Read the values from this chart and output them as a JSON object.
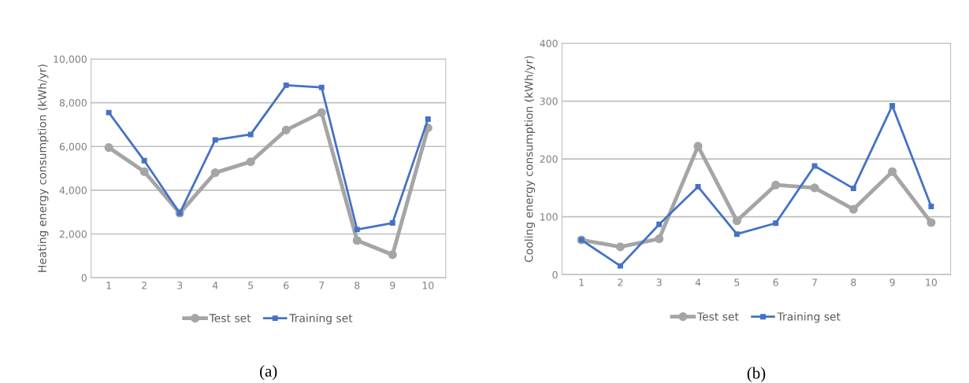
{
  "chart_data": [
    {
      "type": "line",
      "ylabel": "Heating energy consumption (kWh/yr)",
      "categories": [
        "1",
        "2",
        "3",
        "4",
        "5",
        "6",
        "7",
        "8",
        "9",
        "10"
      ],
      "series": [
        {
          "name": "Test set",
          "color": "#a5a5a5",
          "marker": "circle",
          "values": [
            5950,
            4850,
            2950,
            4800,
            5300,
            6750,
            7550,
            1700,
            1050,
            6850
          ]
        },
        {
          "name": "Training set",
          "color": "#4472c4",
          "marker": "square",
          "values": [
            7550,
            5350,
            2950,
            6300,
            6550,
            8800,
            8700,
            2200,
            2500,
            7250
          ]
        }
      ],
      "ylim": [
        0,
        10000
      ],
      "yticks": [
        {
          "value": 0,
          "label": "0"
        },
        {
          "value": 2000,
          "label": "2,000"
        },
        {
          "value": 4000,
          "label": "4,000"
        },
        {
          "value": 6000,
          "label": "6,000"
        },
        {
          "value": 8000,
          "label": "8,000"
        },
        {
          "value": 10000,
          "label": "10,000"
        }
      ],
      "grid": "y",
      "legend": "bottom",
      "annotations": [
        "(a)"
      ]
    },
    {
      "type": "line",
      "ylabel": "Cooling energy consumption (kWh/yr)",
      "categories": [
        "1",
        "2",
        "3",
        "4",
        "5",
        "6",
        "7",
        "8",
        "9",
        "10"
      ],
      "series": [
        {
          "name": "Test set",
          "color": "#a5a5a5",
          "marker": "circle",
          "values": [
            60,
            48,
            62,
            222,
            93,
            155,
            150,
            113,
            178,
            90
          ]
        },
        {
          "name": "Training set",
          "color": "#4472c4",
          "marker": "square",
          "values": [
            60,
            15,
            87,
            152,
            70,
            89,
            188,
            149,
            292,
            118
          ]
        }
      ],
      "ylim": [
        0,
        400
      ],
      "yticks": [
        0,
        100,
        200,
        300,
        400
      ],
      "grid": "y",
      "legend": "bottom",
      "annotations": [
        "(b)"
      ]
    }
  ]
}
